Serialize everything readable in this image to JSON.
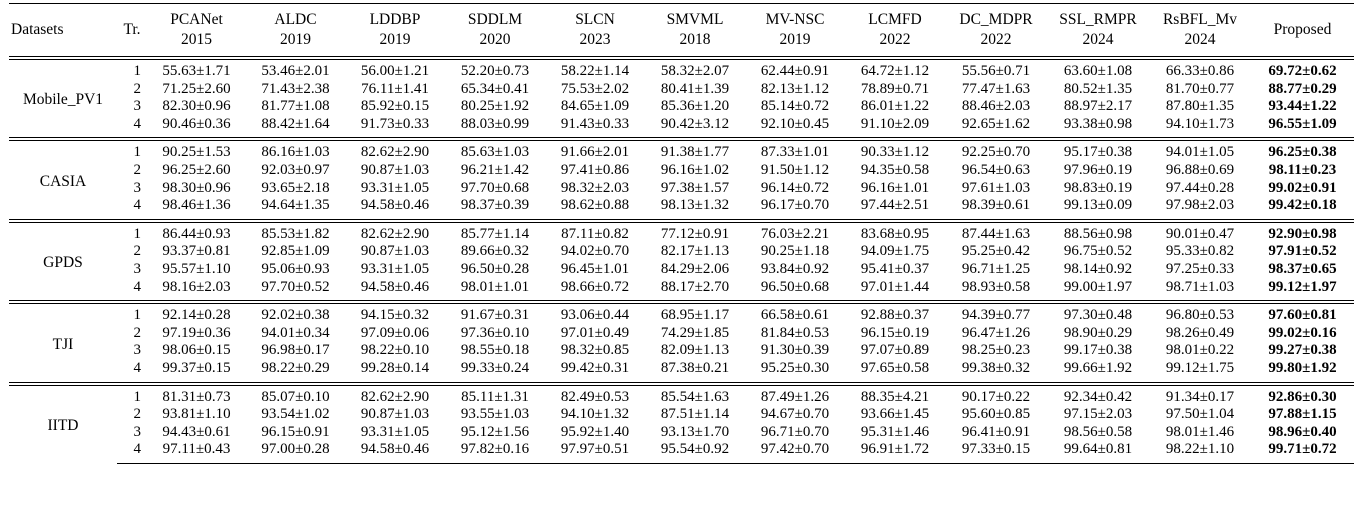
{
  "header": {
    "datasets": "Datasets",
    "tr": "Tr.",
    "methods": [
      {
        "name": "PCANet",
        "year": "2015"
      },
      {
        "name": "ALDC",
        "year": "2019"
      },
      {
        "name": "LDDBP",
        "year": "2019"
      },
      {
        "name": "SDDLM",
        "year": "2020"
      },
      {
        "name": "SLCN",
        "year": "2023"
      },
      {
        "name": "SMVML",
        "year": "2018"
      },
      {
        "name": "MV-NSC",
        "year": "2019"
      },
      {
        "name": "LCMFD",
        "year": "2022"
      },
      {
        "name": "DC_MDPR",
        "year": "2022"
      },
      {
        "name": "SSL_RMPR",
        "year": "2024"
      },
      {
        "name": "RsBFL_Mv",
        "year": "2024"
      },
      {
        "name": "Proposed",
        "year": ""
      }
    ]
  },
  "groups": [
    {
      "dataset": "Mobile_PV1",
      "rows": [
        {
          "tr": "1",
          "vals": [
            "55.63±1.71",
            "53.46±2.01",
            "56.00±1.21",
            "52.20±0.73",
            "58.22±1.14",
            "58.32±2.07",
            "62.44±0.91",
            "64.72±1.12",
            "55.56±0.71",
            "63.60±1.08",
            "66.33±0.86",
            "69.72±0.62"
          ]
        },
        {
          "tr": "2",
          "vals": [
            "71.25±2.60",
            "71.43±2.38",
            "76.11±1.41",
            "65.34±0.41",
            "75.53±2.02",
            "80.41±1.39",
            "82.13±1.12",
            "78.89±0.71",
            "77.47±1.63",
            "80.52±1.35",
            "81.70±0.77",
            "88.77±0.29"
          ]
        },
        {
          "tr": "3",
          "vals": [
            "82.30±0.96",
            "81.77±1.08",
            "85.92±0.15",
            "80.25±1.92",
            "84.65±1.09",
            "85.36±1.20",
            "85.14±0.72",
            "86.01±1.22",
            "88.46±2.03",
            "88.97±2.17",
            "87.80±1.35",
            "93.44±1.22"
          ]
        },
        {
          "tr": "4",
          "vals": [
            "90.46±0.36",
            "88.42±1.64",
            "91.73±0.33",
            "88.03±0.99",
            "91.43±0.33",
            "90.42±3.12",
            "92.10±0.45",
            "91.10±2.09",
            "92.65±1.62",
            "93.38±0.98",
            "94.10±1.73",
            "96.55±1.09"
          ]
        }
      ]
    },
    {
      "dataset": "CASIA",
      "rows": [
        {
          "tr": "1",
          "vals": [
            "90.25±1.53",
            "86.16±1.03",
            "82.62±2.90",
            "85.63±1.03",
            "91.66±2.01",
            "91.38±1.77",
            "87.33±1.01",
            "90.33±1.12",
            "92.25±0.70",
            "95.17±0.38",
            "94.01±1.05",
            "96.25±0.38"
          ]
        },
        {
          "tr": "2",
          "vals": [
            "96.25±2.60",
            "92.03±0.97",
            "90.87±1.03",
            "96.21±1.42",
            "97.41±0.86",
            "96.16±1.02",
            "91.50±1.12",
            "94.35±0.58",
            "96.54±0.63",
            "97.96±0.19",
            "96.88±0.69",
            "98.11±0.23"
          ]
        },
        {
          "tr": "3",
          "vals": [
            "98.30±0.96",
            "93.65±2.18",
            "93.31±1.05",
            "97.70±0.68",
            "98.32±2.03",
            "97.38±1.57",
            "96.14±0.72",
            "96.16±1.01",
            "97.61±1.03",
            "98.83±0.19",
            "97.44±0.28",
            "99.02±0.91"
          ]
        },
        {
          "tr": "4",
          "vals": [
            "98.46±1.36",
            "94.64±1.35",
            "94.58±0.46",
            "98.37±0.39",
            "98.62±0.88",
            "98.13±1.32",
            "96.17±0.70",
            "97.44±2.51",
            "98.39±0.61",
            "99.13±0.09",
            "97.98±2.03",
            "99.42±0.18"
          ]
        }
      ]
    },
    {
      "dataset": "GPDS",
      "rows": [
        {
          "tr": "1",
          "vals": [
            "86.44±0.93",
            "85.53±1.82",
            "82.62±2.90",
            "85.77±1.14",
            "87.11±0.82",
            "77.12±0.91",
            "76.03±2.21",
            "83.68±0.95",
            "87.44±1.63",
            "88.56±0.98",
            "90.01±0.47",
            "92.90±0.98"
          ]
        },
        {
          "tr": "2",
          "vals": [
            "93.37±0.81",
            "92.85±1.09",
            "90.87±1.03",
            "89.66±0.32",
            "94.02±0.70",
            "82.17±1.13",
            "90.25±1.18",
            "94.09±1.75",
            "95.25±0.42",
            "96.75±0.52",
            "95.33±0.82",
            "97.91±0.52"
          ]
        },
        {
          "tr": "3",
          "vals": [
            "95.57±1.10",
            "95.06±0.93",
            "93.31±1.05",
            "96.50±0.28",
            "96.45±1.01",
            "84.29±2.06",
            "93.84±0.92",
            "95.41±0.37",
            "96.71±1.25",
            "98.14±0.92",
            "97.25±0.33",
            "98.37±0.65"
          ]
        },
        {
          "tr": "4",
          "vals": [
            "98.16±2.03",
            "97.70±0.52",
            "94.58±0.46",
            "98.01±1.01",
            "98.66±0.72",
            "88.17±2.70",
            "96.50±0.68",
            "97.01±1.44",
            "98.93±0.58",
            "99.00±1.97",
            "98.71±1.03",
            "99.12±1.97"
          ]
        }
      ]
    },
    {
      "dataset": "TJI",
      "rows": [
        {
          "tr": "1",
          "vals": [
            "92.14±0.28",
            "92.02±0.38",
            "94.15±0.32",
            "91.67±0.31",
            "93.06±0.44",
            "68.95±1.17",
            "66.58±0.61",
            "92.88±0.37",
            "94.39±0.77",
            "97.30±0.48",
            "96.80±0.53",
            "97.60±0.81"
          ]
        },
        {
          "tr": "2",
          "vals": [
            "97.19±0.36",
            "94.01±0.34",
            "97.09±0.06",
            "97.36±0.10",
            "97.01±0.49",
            "74.29±1.85",
            "81.84±0.53",
            "96.15±0.19",
            "96.47±1.26",
            "98.90±0.29",
            "98.26±0.49",
            "99.02±0.16"
          ]
        },
        {
          "tr": "3",
          "vals": [
            "98.06±0.15",
            "96.98±0.17",
            "98.22±0.10",
            "98.55±0.18",
            "98.32±0.85",
            "82.09±1.13",
            "91.30±0.39",
            "97.07±0.89",
            "98.25±0.23",
            "99.17±0.38",
            "98.01±0.22",
            "99.27±0.38"
          ]
        },
        {
          "tr": "4",
          "vals": [
            "99.37±0.15",
            "98.22±0.29",
            "99.28±0.14",
            "99.33±0.24",
            "99.42±0.31",
            "87.38±0.21",
            "95.25±0.30",
            "97.65±0.58",
            "99.38±0.32",
            "99.66±1.92",
            "99.12±1.75",
            "99.80±1.92"
          ]
        }
      ]
    },
    {
      "dataset": "IITD",
      "rows": [
        {
          "tr": "1",
          "vals": [
            "81.31±0.73",
            "85.07±0.10",
            "82.62±2.90",
            "85.11±1.31",
            "82.49±0.53",
            "85.54±1.63",
            "87.49±1.26",
            "88.35±4.21",
            "90.17±0.22",
            "92.34±0.42",
            "91.34±0.17",
            "92.86±0.30"
          ]
        },
        {
          "tr": "2",
          "vals": [
            "93.81±1.10",
            "93.54±1.02",
            "90.87±1.03",
            "93.55±1.03",
            "94.10±1.32",
            "87.51±1.14",
            "94.67±0.70",
            "93.66±1.45",
            "95.60±0.85",
            "97.15±2.03",
            "97.50±1.04",
            "97.88±1.15"
          ]
        },
        {
          "tr": "3",
          "vals": [
            "94.43±0.61",
            "96.15±0.91",
            "93.31±1.05",
            "95.12±1.56",
            "95.92±1.40",
            "93.13±1.70",
            "96.71±0.70",
            "95.31±1.46",
            "96.41±0.91",
            "98.56±0.58",
            "98.01±1.46",
            "98.96±0.40"
          ]
        },
        {
          "tr": "4",
          "vals": [
            "97.11±0.43",
            "97.00±0.28",
            "94.58±0.46",
            "97.82±0.16",
            "97.97±0.51",
            "95.54±0.92",
            "97.42±0.70",
            "96.91±1.72",
            "97.33±0.15",
            "99.64±0.81",
            "98.22±1.10",
            "99.71±0.72"
          ]
        }
      ]
    }
  ]
}
